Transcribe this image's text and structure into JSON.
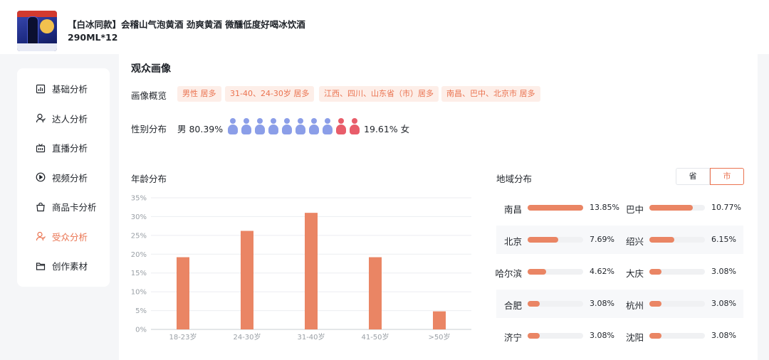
{
  "product": {
    "title": "【白冰同款】会稽山气泡黄酒 劲爽黄酒 微醺低度好喝冰饮酒290ML*12"
  },
  "sidebar": {
    "items": [
      {
        "label": "基础分析",
        "icon": "bar-chart-icon",
        "active": false
      },
      {
        "label": "达人分析",
        "icon": "user-icon",
        "active": false
      },
      {
        "label": "直播分析",
        "icon": "live-icon",
        "active": false
      },
      {
        "label": "视频分析",
        "icon": "play-icon",
        "active": false
      },
      {
        "label": "商品卡分析",
        "icon": "bag-icon",
        "active": false
      },
      {
        "label": "受众分析",
        "icon": "user-icon",
        "active": true
      },
      {
        "label": "创作素材",
        "icon": "folder-icon",
        "active": false
      }
    ]
  },
  "audience": {
    "title": "观众画像",
    "overview_label": "画像概览",
    "tags": [
      "男性 居多",
      "31-40、24-30岁 居多",
      "江西、四川、山东省（市）居多",
      "南昌、巴中、北京市 居多"
    ],
    "gender_label": "性别分布",
    "male_text": "男 80.39%",
    "female_text": "19.61% 女",
    "male_ratio": 0.8039,
    "colors": {
      "male": "#8b9ee8",
      "female": "#e85d6a",
      "accent": "#ea7350"
    }
  },
  "age": {
    "title": "年龄分布"
  },
  "chart_data": {
    "type": "bar",
    "categories": [
      "18-23岁",
      "24-30岁",
      "31-40岁",
      "41-50岁",
      ">50岁"
    ],
    "values": [
      19.2,
      26.2,
      31.0,
      19.2,
      4.8
    ],
    "ylim": [
      0,
      35
    ],
    "yticks": [
      "0%",
      "5%",
      "10%",
      "15%",
      "20%",
      "25%",
      "30%",
      "35%"
    ],
    "grid": true,
    "color": "#ea8564"
  },
  "region": {
    "title": "地域分布",
    "toggle_province": "省",
    "toggle_city": "市",
    "active_toggle": "市",
    "items": [
      {
        "name": "南昌",
        "value": "13.85%",
        "pct": 13.85
      },
      {
        "name": "巴中",
        "value": "10.77%",
        "pct": 10.77
      },
      {
        "name": "北京",
        "value": "7.69%",
        "pct": 7.69
      },
      {
        "name": "绍兴",
        "value": "6.15%",
        "pct": 6.15
      },
      {
        "name": "哈尔滨",
        "value": "4.62%",
        "pct": 4.62
      },
      {
        "name": "大庆",
        "value": "3.08%",
        "pct": 3.08
      },
      {
        "name": "合肥",
        "value": "3.08%",
        "pct": 3.08
      },
      {
        "name": "杭州",
        "value": "3.08%",
        "pct": 3.08
      },
      {
        "name": "济宁",
        "value": "3.08%",
        "pct": 3.08
      },
      {
        "name": "沈阳",
        "value": "3.08%",
        "pct": 3.08
      }
    ]
  }
}
